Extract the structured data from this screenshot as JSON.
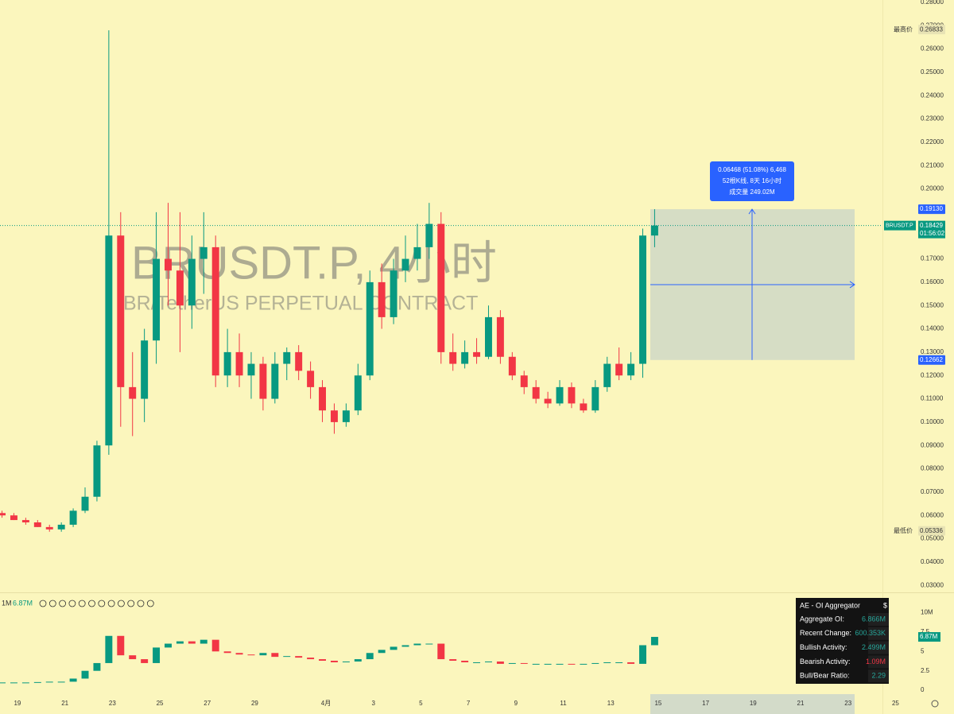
{
  "chart_data": [
    {
      "type": "candlestick",
      "title": "BRUSDT.P, 4小时",
      "subtitle": "BR/TetherUS PERPETUAL CONTRACT",
      "colors": {
        "up": "#089981",
        "down": "#f23645"
      },
      "open": [
        0.061,
        0.06,
        0.058,
        0.057,
        0.055,
        0.054,
        0.056,
        0.062,
        0.068,
        0.09,
        0.18,
        0.115,
        0.11,
        0.135,
        0.17,
        0.165,
        0.15,
        0.17,
        0.175,
        0.12,
        0.13,
        0.12,
        0.125,
        0.11,
        0.125,
        0.13,
        0.122,
        0.115,
        0.105,
        0.1,
        0.105,
        0.12,
        0.16,
        0.145,
        0.165,
        0.17,
        0.175,
        0.185,
        0.13,
        0.125,
        0.13,
        0.128,
        0.145,
        0.128,
        0.12,
        0.115,
        0.11,
        0.108,
        0.115,
        0.108,
        0.105,
        0.115,
        0.125,
        0.12,
        0.125,
        0.18
      ],
      "high": [
        0.062,
        0.061,
        0.059,
        0.058,
        0.056,
        0.057,
        0.063,
        0.072,
        0.092,
        0.268,
        0.19,
        0.13,
        0.14,
        0.19,
        0.194,
        0.19,
        0.18,
        0.19,
        0.18,
        0.14,
        0.138,
        0.13,
        0.128,
        0.13,
        0.132,
        0.133,
        0.126,
        0.118,
        0.108,
        0.108,
        0.125,
        0.165,
        0.168,
        0.17,
        0.18,
        0.185,
        0.194,
        0.19,
        0.138,
        0.135,
        0.136,
        0.15,
        0.148,
        0.13,
        0.122,
        0.118,
        0.113,
        0.118,
        0.117,
        0.11,
        0.118,
        0.128,
        0.132,
        0.13,
        0.183,
        0.1913
      ],
      "low": [
        0.059,
        0.058,
        0.056,
        0.055,
        0.053,
        0.053,
        0.055,
        0.061,
        0.066,
        0.086,
        0.098,
        0.094,
        0.1,
        0.125,
        0.15,
        0.13,
        0.14,
        0.155,
        0.115,
        0.115,
        0.115,
        0.11,
        0.105,
        0.108,
        0.118,
        0.118,
        0.11,
        0.1,
        0.095,
        0.098,
        0.103,
        0.118,
        0.14,
        0.142,
        0.16,
        0.165,
        0.17,
        0.125,
        0.122,
        0.123,
        0.125,
        0.127,
        0.125,
        0.118,
        0.112,
        0.108,
        0.106,
        0.107,
        0.106,
        0.104,
        0.104,
        0.113,
        0.118,
        0.118,
        0.119,
        0.175
      ],
      "close": [
        0.06,
        0.058,
        0.057,
        0.055,
        0.054,
        0.056,
        0.062,
        0.068,
        0.09,
        0.18,
        0.115,
        0.11,
        0.135,
        0.17,
        0.165,
        0.15,
        0.17,
        0.175,
        0.12,
        0.13,
        0.12,
        0.125,
        0.11,
        0.125,
        0.13,
        0.122,
        0.115,
        0.105,
        0.1,
        0.105,
        0.12,
        0.16,
        0.145,
        0.165,
        0.17,
        0.175,
        0.185,
        0.13,
        0.125,
        0.13,
        0.128,
        0.145,
        0.128,
        0.12,
        0.115,
        0.11,
        0.108,
        0.115,
        0.108,
        0.105,
        0.115,
        0.125,
        0.12,
        0.125,
        0.18,
        0.18429
      ],
      "xlim": [
        -0.17,
        74.2
      ],
      "xticks": [
        {
          "value": 1.3,
          "label": "19"
        },
        {
          "value": 5.3,
          "label": "21"
        },
        {
          "value": 9.3,
          "label": "23"
        },
        {
          "value": 13.3,
          "label": "25"
        },
        {
          "value": 17.3,
          "label": "27"
        },
        {
          "value": 21.3,
          "label": "29"
        },
        {
          "value": 27.3,
          "label": "4月"
        },
        {
          "value": 31.3,
          "label": "3"
        },
        {
          "value": 35.3,
          "label": "5"
        },
        {
          "value": 39.3,
          "label": "7"
        },
        {
          "value": 43.3,
          "label": "9"
        },
        {
          "value": 47.3,
          "label": "11"
        },
        {
          "value": 51.3,
          "label": "13"
        },
        {
          "value": 55.3,
          "label": "15"
        },
        {
          "value": 59.3,
          "label": "17"
        },
        {
          "value": 63.3,
          "label": "19"
        },
        {
          "value": 67.3,
          "label": "21"
        },
        {
          "value": 71.3,
          "label": "23"
        },
        {
          "value": 75.3,
          "label": "25"
        }
      ],
      "ylim": [
        0.027,
        0.281
      ],
      "yticks": [
        {
          "value": 0.28,
          "label": "0.28000"
        },
        {
          "value": 0.27,
          "label": "0.27000"
        },
        {
          "value": 0.26,
          "label": "0.26000"
        },
        {
          "value": 0.25,
          "label": "0.25000"
        },
        {
          "value": 0.24,
          "label": "0.24000"
        },
        {
          "value": 0.23,
          "label": "0.23000"
        },
        {
          "value": 0.22,
          "label": "0.22000"
        },
        {
          "value": 0.21,
          "label": "0.21000"
        },
        {
          "value": 0.2,
          "label": "0.20000"
        },
        {
          "value": 0.19,
          "label": "0.19000"
        },
        {
          "value": 0.18,
          "label": "0.18000"
        },
        {
          "value": 0.17,
          "label": "0.17000"
        },
        {
          "value": 0.16,
          "label": "0.16000"
        },
        {
          "value": 0.15,
          "label": "0.15000"
        },
        {
          "value": 0.14,
          "label": "0.14000"
        },
        {
          "value": 0.13,
          "label": "0.13000"
        },
        {
          "value": 0.12,
          "label": "0.12000"
        },
        {
          "value": 0.11,
          "label": "0.11000"
        },
        {
          "value": 0.1,
          "label": "0.10000"
        },
        {
          "value": 0.09,
          "label": "0.09000"
        },
        {
          "value": 0.08,
          "label": "0.08000"
        },
        {
          "value": 0.07,
          "label": "0.07000"
        },
        {
          "value": 0.06,
          "label": "0.06000"
        },
        {
          "value": 0.05,
          "label": "0.05000"
        },
        {
          "value": 0.04,
          "label": "0.04000"
        },
        {
          "value": 0.03,
          "label": "0.03000"
        }
      ],
      "high_label": {
        "text": "最高价",
        "value": 0.26833
      },
      "low_label": {
        "text": "最低价",
        "value": 0.05336
      },
      "last_price": {
        "symbol": "BRUSDT.P",
        "value": 0.18429,
        "countdown": "01:56:02"
      },
      "range_box": {
        "top": {
          "value": 0.1913,
          "label": "0.19130"
        },
        "bottom": {
          "value": 0.12662,
          "label": "0.12662"
        },
        "lines": [
          "0.06468 (51.08%) 6,468",
          "52根K线, 8天 16小时",
          "成交量 249.02M"
        ]
      }
    },
    {
      "type": "candlestick-close",
      "name": "1M",
      "last": 6.87,
      "last_label": "6.87M",
      "colors": {
        "up": "#089981",
        "down": "#f23645"
      },
      "values": [
        1.0,
        1.0,
        1.0,
        1.05,
        1.1,
        1.1,
        1.5,
        2.5,
        3.5,
        7.0,
        4.5,
        4.0,
        3.5,
        5.5,
        6.0,
        6.3,
        6.0,
        6.5,
        5.0,
        4.8,
        4.6,
        4.5,
        4.8,
        4.3,
        4.4,
        4.2,
        4.0,
        3.8,
        3.6,
        3.7,
        4.0,
        4.8,
        5.2,
        5.6,
        5.8,
        6.0,
        6.0,
        4.0,
        3.8,
        3.6,
        3.6,
        3.7,
        3.4,
        3.5,
        3.4,
        3.4,
        3.4,
        3.4,
        3.3,
        3.4,
        3.5,
        3.6,
        3.6,
        3.4,
        5.8,
        6.87
      ],
      "ylim": [
        -0.5,
        12.3
      ],
      "yticks": [
        0,
        2.5,
        5,
        7.5,
        {
          "value": 10,
          "label": "10M"
        }
      ],
      "table": {
        "title": "AE - OI Aggregator",
        "unit": "$",
        "rows": [
          [
            "Aggregate OI:",
            "6.866M"
          ],
          [
            "Recent Change:",
            "600.353K"
          ],
          [
            "Bullish Activity:",
            "2.499M"
          ],
          [
            "Bearish Activity:",
            "1.09M"
          ],
          [
            "Bull/Bear Ratio:",
            "2.29"
          ]
        ]
      }
    }
  ]
}
